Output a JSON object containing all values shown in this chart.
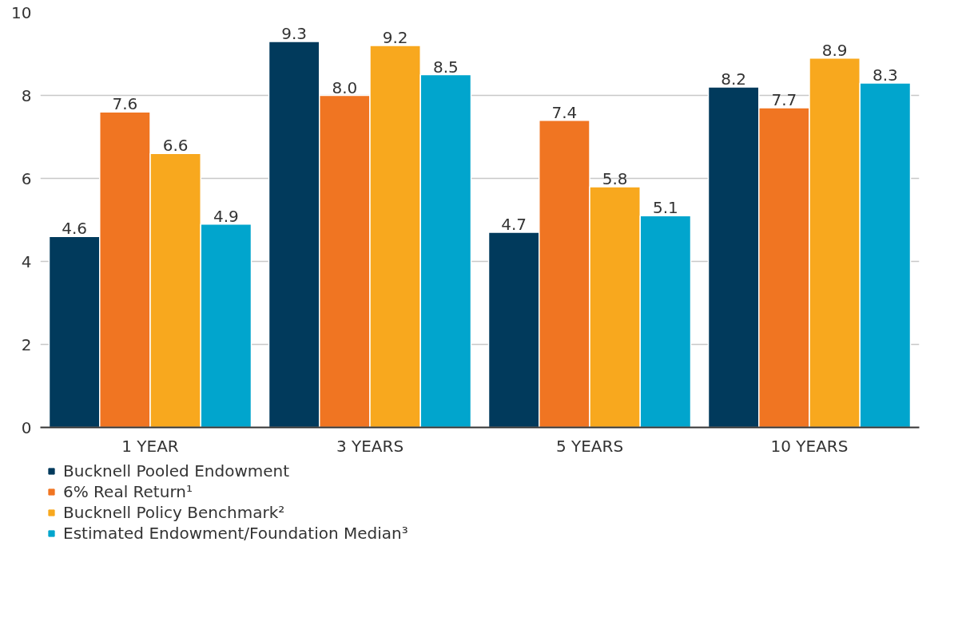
{
  "chart_data": {
    "type": "bar",
    "categories": [
      "1 YEAR",
      "3 YEARS",
      "5 YEARS",
      "10 YEARS"
    ],
    "series": [
      {
        "name": "Bucknell Pooled Endowment",
        "color": "#013a5c",
        "values": [
          4.6,
          9.3,
          4.7,
          8.2
        ],
        "value_labels": [
          "4.6",
          "9.3",
          "4.7",
          "8.2"
        ]
      },
      {
        "name": "6% Real Return¹",
        "color": "#f07522",
        "values": [
          7.6,
          8.0,
          7.4,
          7.7
        ],
        "value_labels": [
          "7.6",
          "8.0",
          "7.4",
          "7.7"
        ]
      },
      {
        "name": "Bucknell Policy Benchmark²",
        "color": "#f8a81e",
        "values": [
          6.6,
          9.2,
          5.8,
          8.9
        ],
        "value_labels": [
          "6.6",
          "9.2",
          "5.8",
          "8.9"
        ]
      },
      {
        "name": "Estimated Endowment/Foundation Median³",
        "color": "#01a5cd",
        "values": [
          4.9,
          8.5,
          5.1,
          8.3
        ],
        "value_labels": [
          "4.9",
          "8.5",
          "5.1",
          "8.3"
        ]
      }
    ],
    "ylim": [
      0,
      10
    ],
    "yticks": [
      0,
      2,
      4,
      6,
      8,
      10
    ],
    "grid": "y",
    "legend": "bottom left"
  }
}
